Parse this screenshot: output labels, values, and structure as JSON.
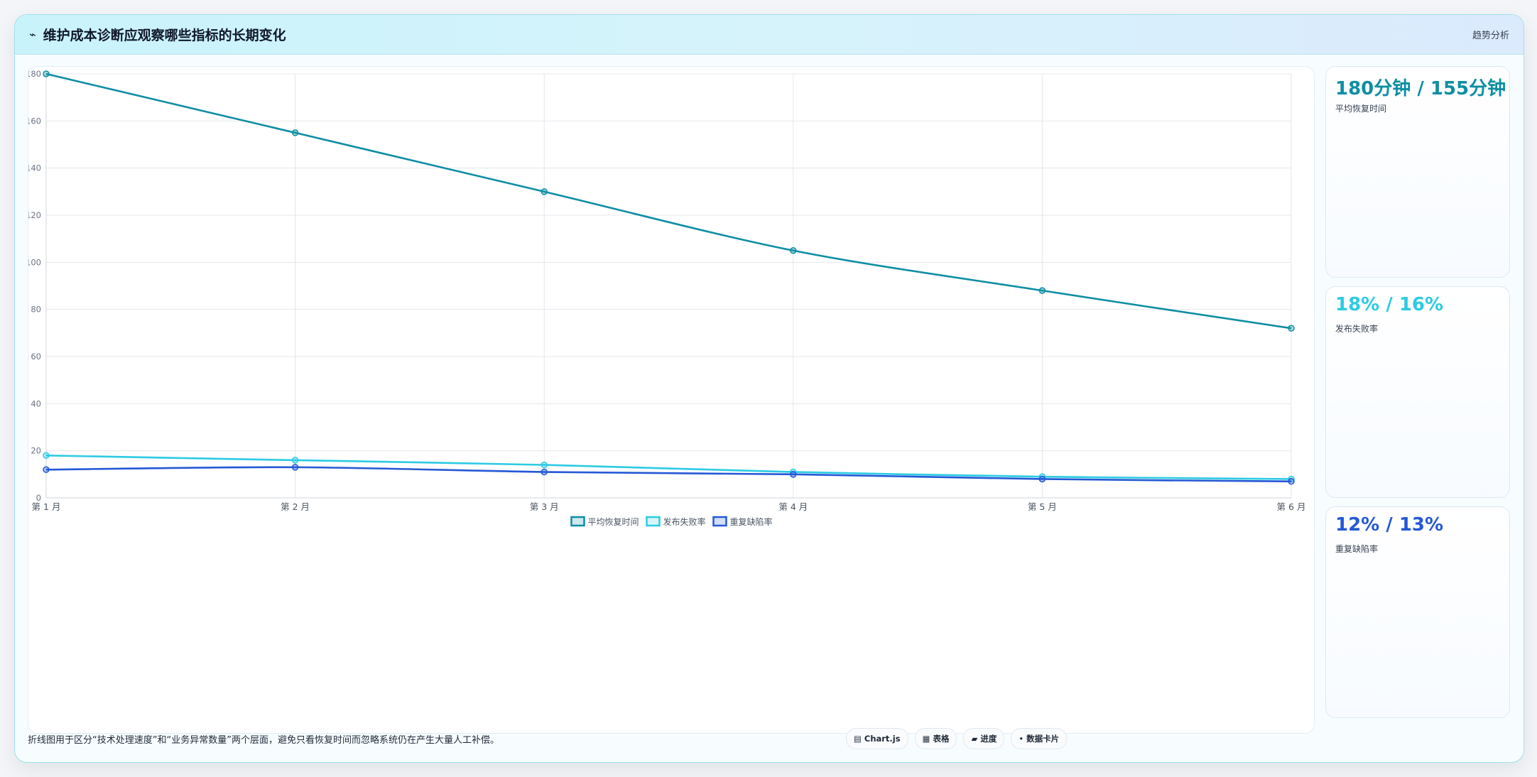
{
  "header": {
    "icon": "trend-line-icon",
    "icon_glyph": "⌁",
    "title": "维护成本诊断应观察哪些指标的长期变化",
    "tag": "趋势分析"
  },
  "kpis": [
    {
      "value": "180分钟 / 155分钟",
      "label": "平均恢复时间",
      "color": "#0e8ea3"
    },
    {
      "value": "18% / 16%",
      "label": "发布失败率",
      "color": "#2ccbe3"
    },
    {
      "value": "12% / 13%",
      "label": "重复缺陷率",
      "color": "#2458d6"
    }
  ],
  "footnote": "折线图用于区分“技术处理速度”和“业务异常数量”两个层面，避免只看恢复时间而忽略系统仍在产生大量人工补偿。",
  "chips": [
    {
      "icon": "chart-icon",
      "glyph": "▤",
      "label": "Chart.js"
    },
    {
      "icon": "table-icon",
      "glyph": "▦",
      "label": "表格"
    },
    {
      "icon": "progress-icon",
      "glyph": "▰",
      "label": "进度"
    },
    {
      "icon": "dot-icon",
      "glyph": "•",
      "label": "数据卡片"
    }
  ],
  "chart_data": {
    "type": "line",
    "categories": [
      "第 1 月",
      "第 2 月",
      "第 3 月",
      "第 4 月",
      "第 5 月",
      "第 6 月"
    ],
    "ylim": [
      0,
      180
    ],
    "yticks": [
      0,
      20,
      40,
      60,
      80,
      100,
      120,
      140,
      160,
      180
    ],
    "grid": true,
    "legend_position": "bottom",
    "series": [
      {
        "name": "平均恢复时间",
        "color": "#0e8ea3",
        "values": [
          180,
          155,
          130,
          105,
          88,
          72
        ]
      },
      {
        "name": "发布失败率",
        "color": "#2ccbe3",
        "values": [
          18,
          16,
          14,
          11,
          9,
          8
        ]
      },
      {
        "name": "重复缺陷率",
        "color": "#2458d6",
        "values": [
          12,
          13,
          11,
          10,
          8,
          7
        ]
      }
    ]
  }
}
